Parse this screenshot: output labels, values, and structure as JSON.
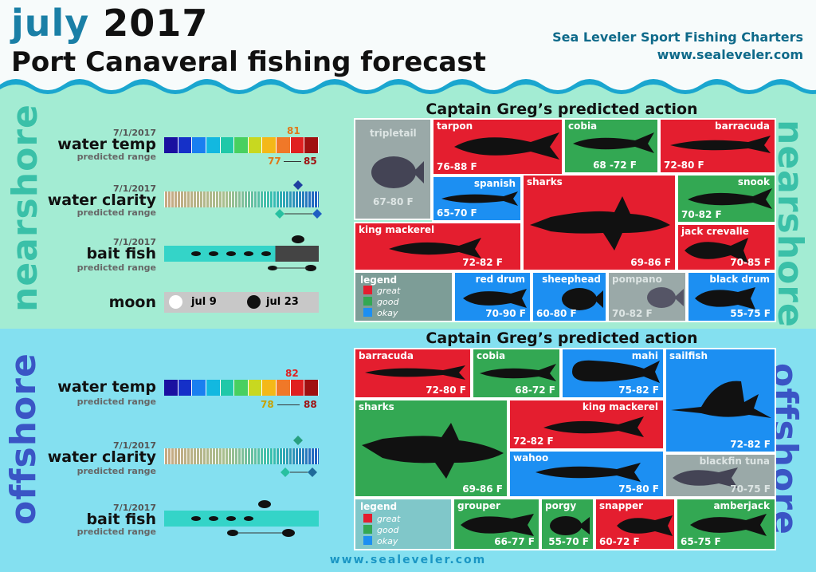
{
  "header": {
    "month": "july",
    "year": "2017",
    "subtitle": "Port Canaveral fishing forecast",
    "brand": "Sea Leveler Sport Fishing Charters",
    "website": "www.sealeveler.com"
  },
  "colors": {
    "great": "#e41e2f",
    "good": "#33a853",
    "okay": "#1c8ff2",
    "nearshore_bg": "#a3ecd3",
    "offshore_bg": "#84e0f0",
    "temp_scale": [
      "#1a10a0",
      "#1530c8",
      "#1a7ff0",
      "#12b8e0",
      "#20c8a8",
      "#48d060",
      "#c8d820",
      "#f4b818",
      "#f07828",
      "#e02020",
      "#a01010"
    ]
  },
  "nearshore": {
    "side_label": "nearshore",
    "section_title": "Captain Greg’s predicted action",
    "water_temp": {
      "date": "7/1/2017",
      "label": "water temp",
      "sub": "predicted range",
      "predicted": "81",
      "low": "77",
      "high": "85"
    },
    "water_clarity": {
      "date": "7/1/2017",
      "label": "water clarity",
      "sub": "predicted range"
    },
    "bait_fish": {
      "date": "7/1/2017",
      "label": "bait fish",
      "sub": "predicted range"
    },
    "moon": {
      "label": "moon",
      "full": "jul 9",
      "new": "jul 23"
    },
    "legend": {
      "title": "legend",
      "great": "great",
      "good": "good",
      "okay": "okay"
    },
    "species": [
      {
        "name": "tripletail",
        "temp": "67-80 F",
        "rating": "na"
      },
      {
        "name": "tarpon",
        "temp": "76-88 F",
        "rating": "great"
      },
      {
        "name": "cobia",
        "temp": "68 -72 F",
        "rating": "good"
      },
      {
        "name": "barracuda",
        "temp": "72-80 F",
        "rating": "great"
      },
      {
        "name": "spanish",
        "temp": "65-70 F",
        "rating": "okay"
      },
      {
        "name": "sharks",
        "temp": "69-86 F",
        "rating": "great"
      },
      {
        "name": "snook",
        "temp": "70-82 F",
        "rating": "good"
      },
      {
        "name": "king mackerel",
        "temp": "72-82 F",
        "rating": "great"
      },
      {
        "name": "jack crevalle",
        "temp": "70-85 F",
        "rating": "great"
      },
      {
        "name": "red drum",
        "temp": "70-90 F",
        "rating": "okay"
      },
      {
        "name": "sheephead",
        "temp": "60-80 F",
        "rating": "okay"
      },
      {
        "name": "pompano",
        "temp": "70-82 F",
        "rating": "na"
      },
      {
        "name": "black drum",
        "temp": "55-75 F",
        "rating": "okay"
      }
    ]
  },
  "offshore": {
    "side_label": "offshore",
    "section_title": "Captain Greg’s predicted action",
    "water_temp": {
      "label": "water temp",
      "sub": "predicted range",
      "predicted": "82",
      "low": "78",
      "high": "88"
    },
    "water_clarity": {
      "date": "7/1/2017",
      "label": "water clarity",
      "sub": "predicted range"
    },
    "bait_fish": {
      "date": "7/1/2017",
      "label": "bait fish",
      "sub": "predicted range"
    },
    "legend": {
      "title": "legend",
      "great": "great",
      "good": "good",
      "okay": "okay"
    },
    "species": [
      {
        "name": "barracuda",
        "temp": "72-80 F",
        "rating": "great"
      },
      {
        "name": "cobia",
        "temp": "68-72 F",
        "rating": "good"
      },
      {
        "name": "mahi",
        "temp": "75-82 F",
        "rating": "okay"
      },
      {
        "name": "sailfish",
        "temp": "72-82 F",
        "rating": "okay"
      },
      {
        "name": "sharks",
        "temp": "69-86 F",
        "rating": "good"
      },
      {
        "name": "king mackerel",
        "temp": "72-82 F",
        "rating": "great"
      },
      {
        "name": "wahoo",
        "temp": "75-80 F",
        "rating": "okay"
      },
      {
        "name": "blackfin tuna",
        "temp": "70-75 F",
        "rating": "na"
      },
      {
        "name": "grouper",
        "temp": "66-77 F",
        "rating": "good"
      },
      {
        "name": "porgy",
        "temp": "55-70 F",
        "rating": "good"
      },
      {
        "name": "snapper",
        "temp": "60-72 F",
        "rating": "great"
      },
      {
        "name": "amberjack",
        "temp": "65-75 F",
        "rating": "good"
      }
    ]
  },
  "footer": {
    "website": "www.sealeveler.com"
  }
}
